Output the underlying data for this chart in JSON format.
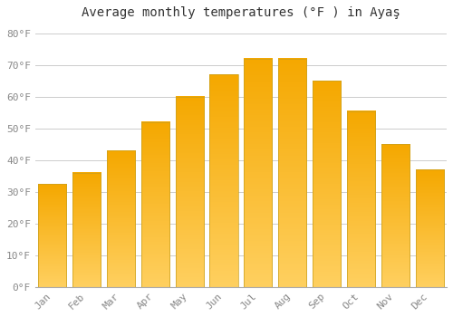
{
  "title": "Average monthly temperatures (°F ) in Ayaş",
  "months": [
    "Jan",
    "Feb",
    "Mar",
    "Apr",
    "May",
    "Jun",
    "Jul",
    "Aug",
    "Sep",
    "Oct",
    "Nov",
    "Dec"
  ],
  "values": [
    32.5,
    36.0,
    43.0,
    52.0,
    60.0,
    67.0,
    72.0,
    72.0,
    65.0,
    55.5,
    45.0,
    37.0
  ],
  "bar_color_top": "#F5A800",
  "bar_color_bottom": "#FFD060",
  "bar_edge_color": "#C8A020",
  "background_color": "#FFFFFF",
  "grid_color": "#CCCCCC",
  "yticks": [
    0,
    10,
    20,
    30,
    40,
    50,
    60,
    70,
    80
  ],
  "ylim": [
    0,
    83
  ],
  "title_fontsize": 10,
  "tick_fontsize": 8,
  "font_family": "monospace",
  "bar_width": 0.82
}
